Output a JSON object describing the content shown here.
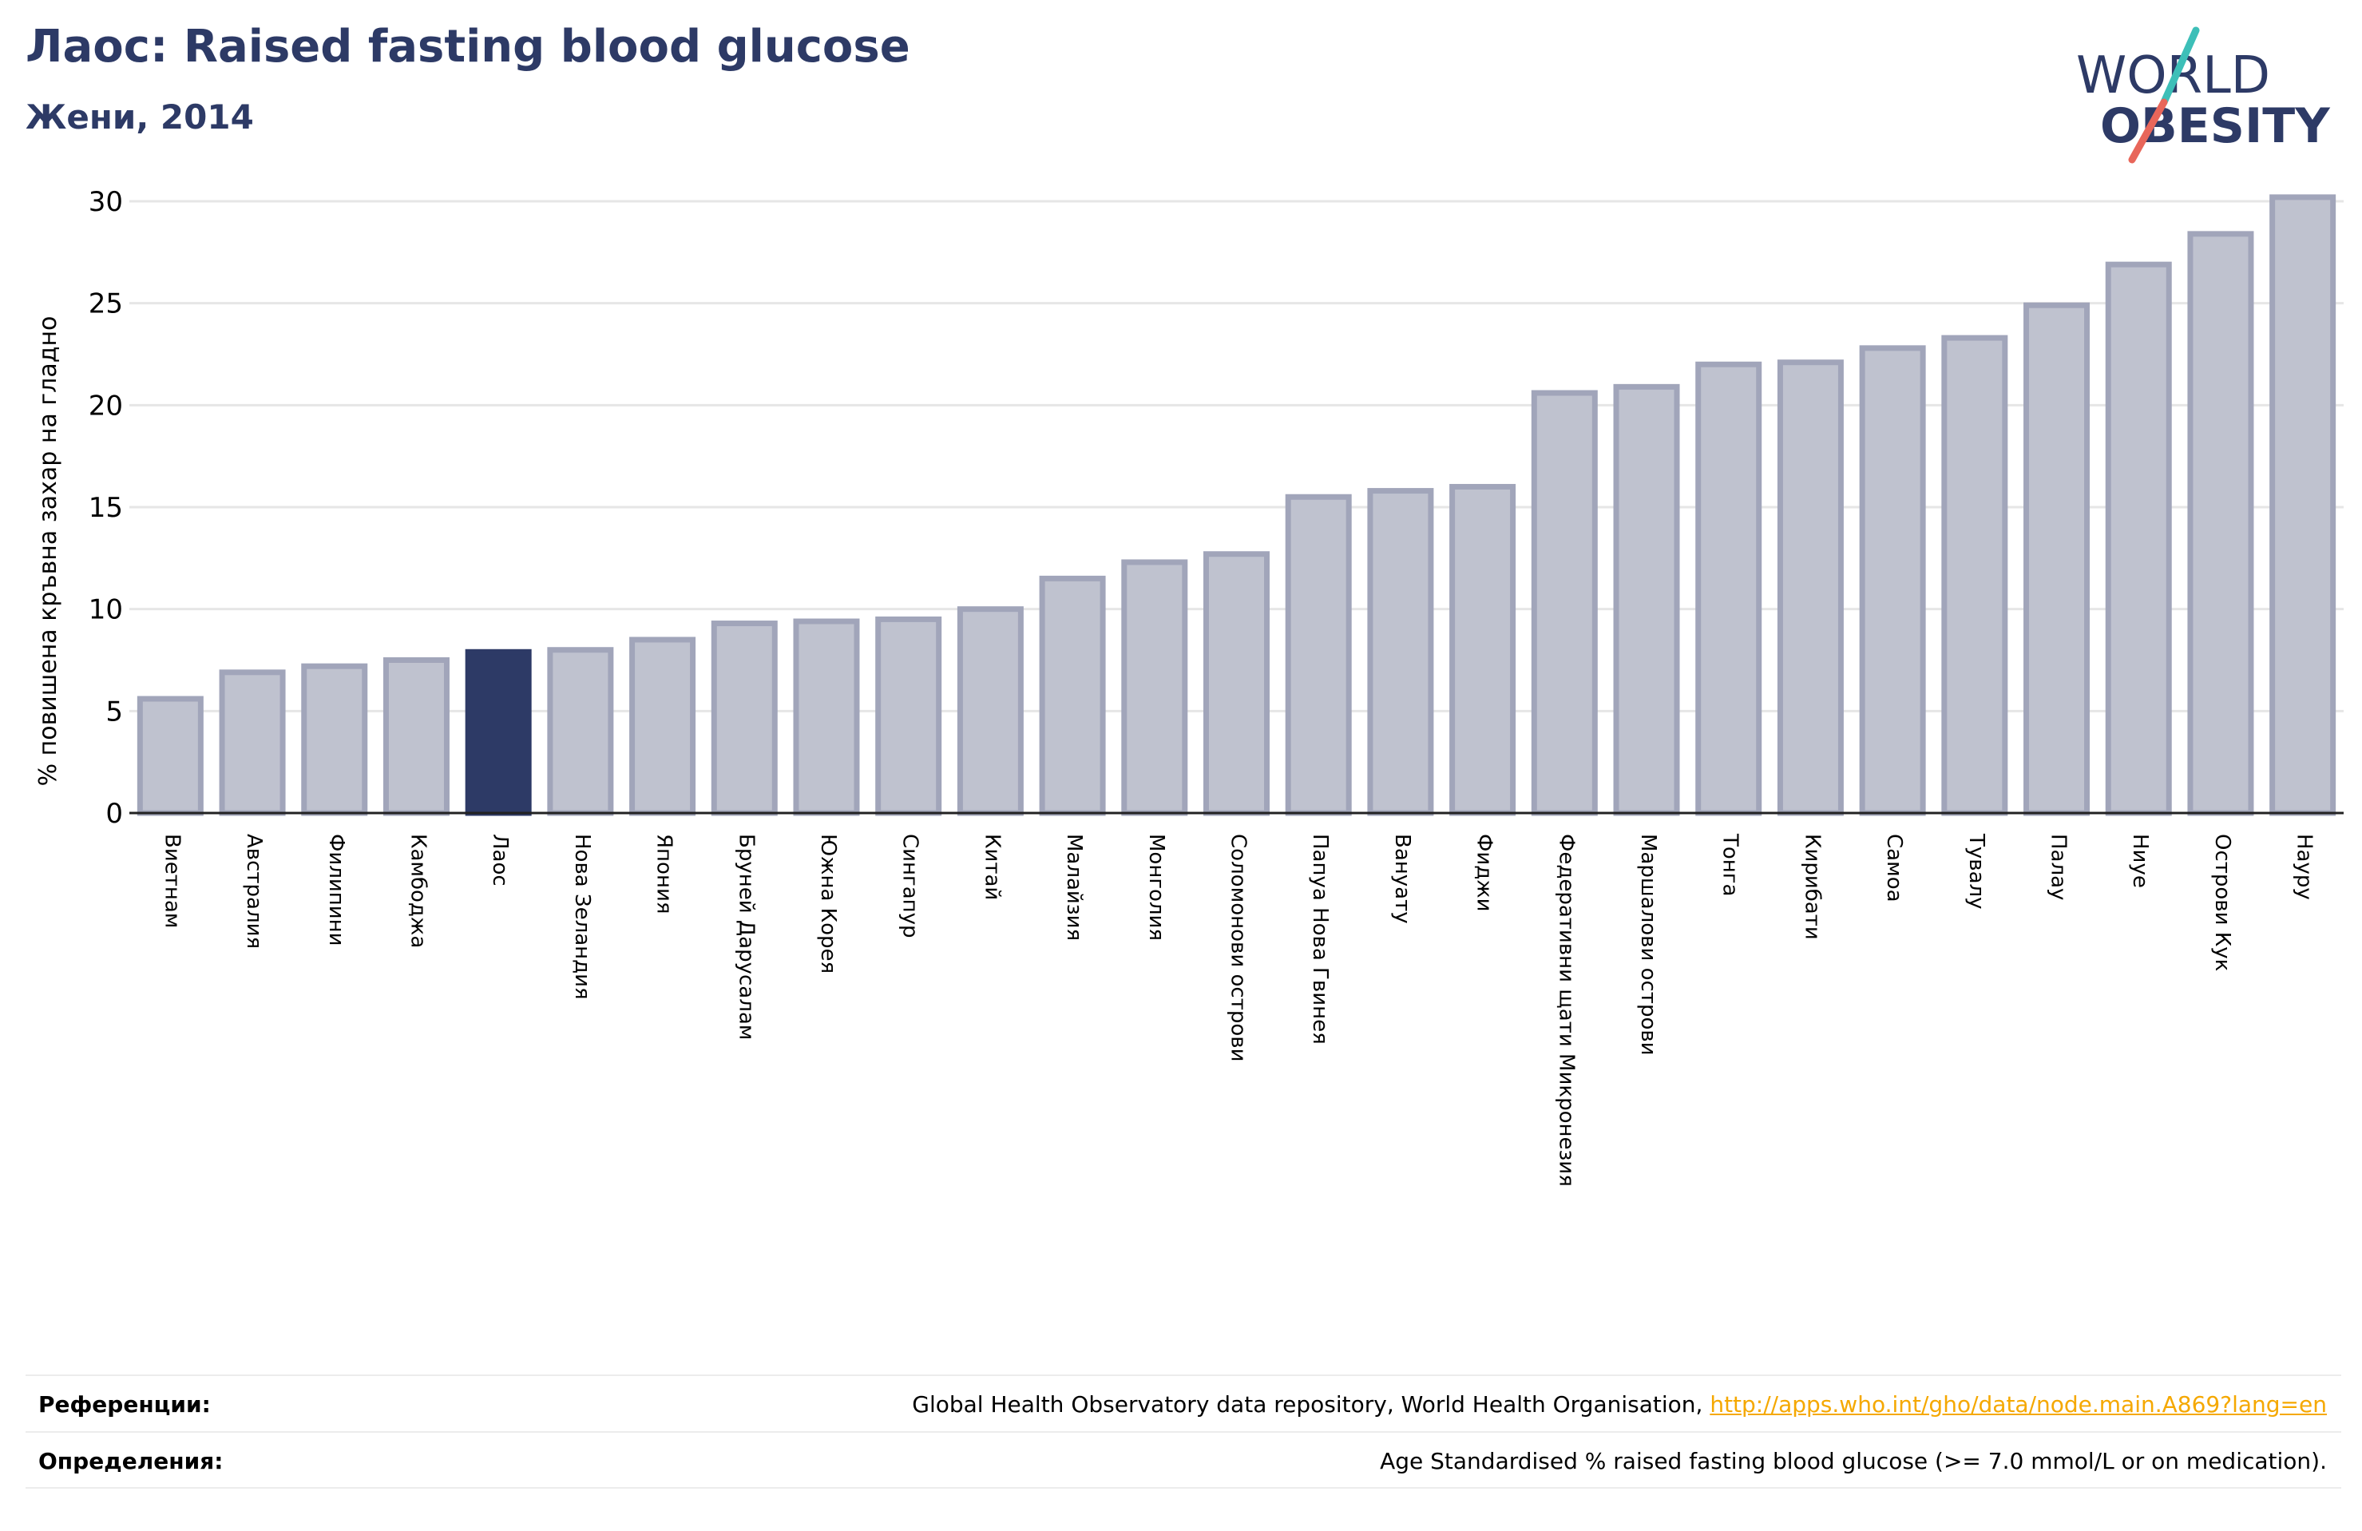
{
  "header": {
    "title": "Лаос: Raised fasting blood glucose",
    "subtitle": "Жени, 2014"
  },
  "logo": {
    "line1": "WORLD",
    "line2": "OBESITY",
    "text_color": "#2d3a66",
    "slash_teal": "#3dbfb8",
    "slash_red": "#e8665a"
  },
  "colors": {
    "bar_fill": "#bfc2cf",
    "bar_stroke": "#a1a5ba",
    "highlight": "#2d3a66",
    "grid": "#e6e6e6"
  },
  "chart_data": {
    "type": "bar",
    "title": "",
    "xlabel": "",
    "ylabel": "% повишена кръвна захар на гладно",
    "ylim": [
      0,
      30
    ],
    "yticks": [
      0,
      5,
      10,
      15,
      20,
      25,
      30
    ],
    "grid": true,
    "highlight": "Лаос",
    "categories": [
      "Виетнам",
      "Австралия",
      "Филипини",
      "Камбоджа",
      "Лаос",
      "Нова Зеландия",
      "Япония",
      "Бруней Дарусалам",
      "Южна Корея",
      "Сингапур",
      "Китай",
      "Малайзия",
      "Монголия",
      "Соломонови острови",
      "Папуа Нова Гвинея",
      "Вануату",
      "Фиджи",
      "Федеративни щати Микронезия",
      "Маршалови острови",
      "Тонга",
      "Кирибати",
      "Самоа",
      "Тувалу",
      "Палау",
      "Ниуе",
      "Острови Кук",
      "Науру"
    ],
    "values": [
      5.6,
      6.9,
      7.2,
      7.5,
      7.9,
      8.0,
      8.5,
      9.3,
      9.4,
      9.5,
      10.0,
      11.5,
      12.3,
      12.7,
      15.5,
      15.8,
      16.0,
      20.6,
      20.9,
      22.0,
      22.1,
      22.8,
      23.3,
      24.9,
      26.9,
      28.4,
      30.2
    ]
  },
  "footer": {
    "references_label": "Референции:",
    "references_text": "Global Health Observatory data repository, World Health Organisation, ",
    "references_link": "http://apps.who.int/gho/data/node.main.A869?lang=en",
    "definitions_label": "Определения:",
    "definitions_text": "Age Standardised % raised fasting blood glucose (>= 7.0 mmol/L or on medication)."
  }
}
